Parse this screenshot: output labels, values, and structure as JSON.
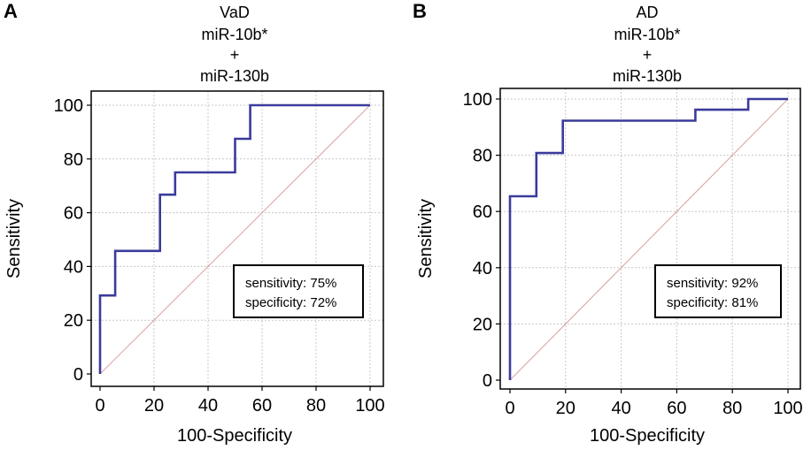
{
  "chart_data": [
    {
      "panel": "A",
      "type": "line",
      "title_lines": [
        "VaD",
        "miR-10b*",
        "+",
        "miR-130b"
      ],
      "xlabel": "100-Specificity",
      "ylabel": "Sensitivity",
      "xlim": [
        0,
        100
      ],
      "ylim": [
        0,
        100
      ],
      "xticks": [
        0,
        20,
        40,
        60,
        80,
        100
      ],
      "yticks": [
        0,
        20,
        40,
        60,
        80,
        100
      ],
      "grid": true,
      "series": [
        {
          "name": "ROC curve",
          "color": "#3b3b9c",
          "x": [
            0,
            0,
            5.6,
            5.6,
            22.2,
            22.2,
            27.8,
            27.8,
            50,
            50,
            55.6,
            55.6,
            100
          ],
          "y": [
            0,
            29.2,
            29.2,
            45.8,
            45.8,
            66.7,
            66.7,
            75,
            75,
            87.5,
            87.5,
            100,
            100
          ]
        },
        {
          "name": "reference diagonal",
          "color": "#d9a0a0",
          "x": [
            0,
            100
          ],
          "y": [
            0,
            100
          ]
        }
      ],
      "annotation": {
        "sensitivity": "sensitivity: 75%",
        "specificity": "specificity: 72%"
      }
    },
    {
      "panel": "B",
      "type": "line",
      "title_lines": [
        "AD",
        "miR-10b*",
        "+",
        "miR-130b"
      ],
      "xlabel": "100-Specificity",
      "ylabel": "Sensitivity",
      "xlim": [
        0,
        100
      ],
      "ylim": [
        0,
        100
      ],
      "xticks": [
        0,
        20,
        40,
        60,
        80,
        100
      ],
      "yticks": [
        0,
        20,
        40,
        60,
        80,
        100
      ],
      "grid": true,
      "series": [
        {
          "name": "ROC curve",
          "color": "#3b3b9c",
          "x": [
            0,
            0,
            9.5,
            9.5,
            19,
            19,
            66.7,
            66.7,
            85.7,
            85.7,
            100
          ],
          "y": [
            0,
            65.4,
            65.4,
            80.8,
            80.8,
            92.3,
            92.3,
            96.2,
            96.2,
            100,
            100
          ]
        },
        {
          "name": "reference diagonal",
          "color": "#d9a0a0",
          "x": [
            0,
            100
          ],
          "y": [
            0,
            100
          ]
        }
      ],
      "annotation": {
        "sensitivity": "sensitivity: 92%",
        "specificity": "specificity: 81%"
      }
    }
  ]
}
